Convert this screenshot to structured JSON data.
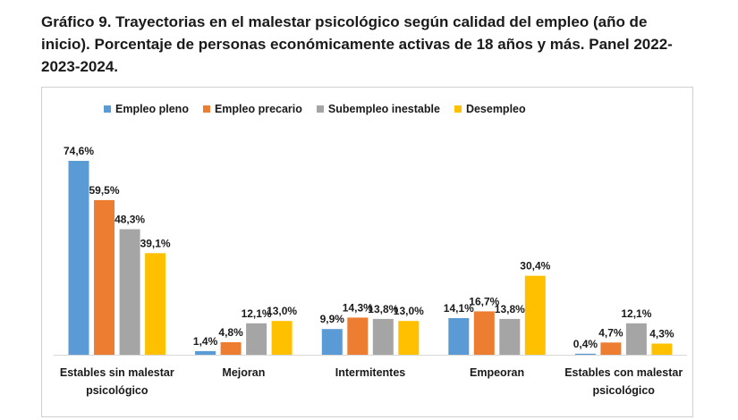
{
  "title": "Gráfico 9. Trayectorias en el malestar psicológico según calidad del empleo (año de inicio). Porcentaje de personas económicamente activas de 18 años y más. Panel 2022-2023-2024.",
  "chart_data": {
    "type": "bar",
    "categories": [
      [
        "Estables sin malestar",
        "psicológico"
      ],
      [
        "Mejoran"
      ],
      [
        "Intermitentes"
      ],
      [
        "Empeoran"
      ],
      [
        "Estables con malestar",
        "psicológico"
      ]
    ],
    "series": [
      {
        "name": "Empleo pleno",
        "color": "#5b9bd5",
        "values": [
          74.6,
          1.4,
          9.9,
          14.1,
          0.4
        ],
        "labels": [
          "74,6%",
          "1,4%",
          "9,9%",
          "14,1%",
          "0,4%"
        ]
      },
      {
        "name": "Empleo precario",
        "color": "#ed7d31",
        "values": [
          59.5,
          4.8,
          14.3,
          16.7,
          4.7
        ],
        "labels": [
          "59,5%",
          "4,8%",
          "14,3%",
          "16,7%",
          "4,7%"
        ]
      },
      {
        "name": "Subempleo inestable",
        "color": "#a5a5a5",
        "values": [
          48.3,
          12.1,
          13.8,
          13.8,
          12.1
        ],
        "labels": [
          "48,3%",
          "12,1%",
          "13,8%",
          "13,8%",
          "12,1%"
        ]
      },
      {
        "name": "Desempleo",
        "color": "#ffc000",
        "values": [
          39.1,
          13.0,
          13.0,
          30.4,
          4.3
        ],
        "labels": [
          "39,1%",
          "13,0%",
          "13,0%",
          "30,4%",
          "4,3%"
        ]
      }
    ],
    "ylim": [
      0,
      80
    ],
    "grid": false,
    "legend_position": "top"
  }
}
